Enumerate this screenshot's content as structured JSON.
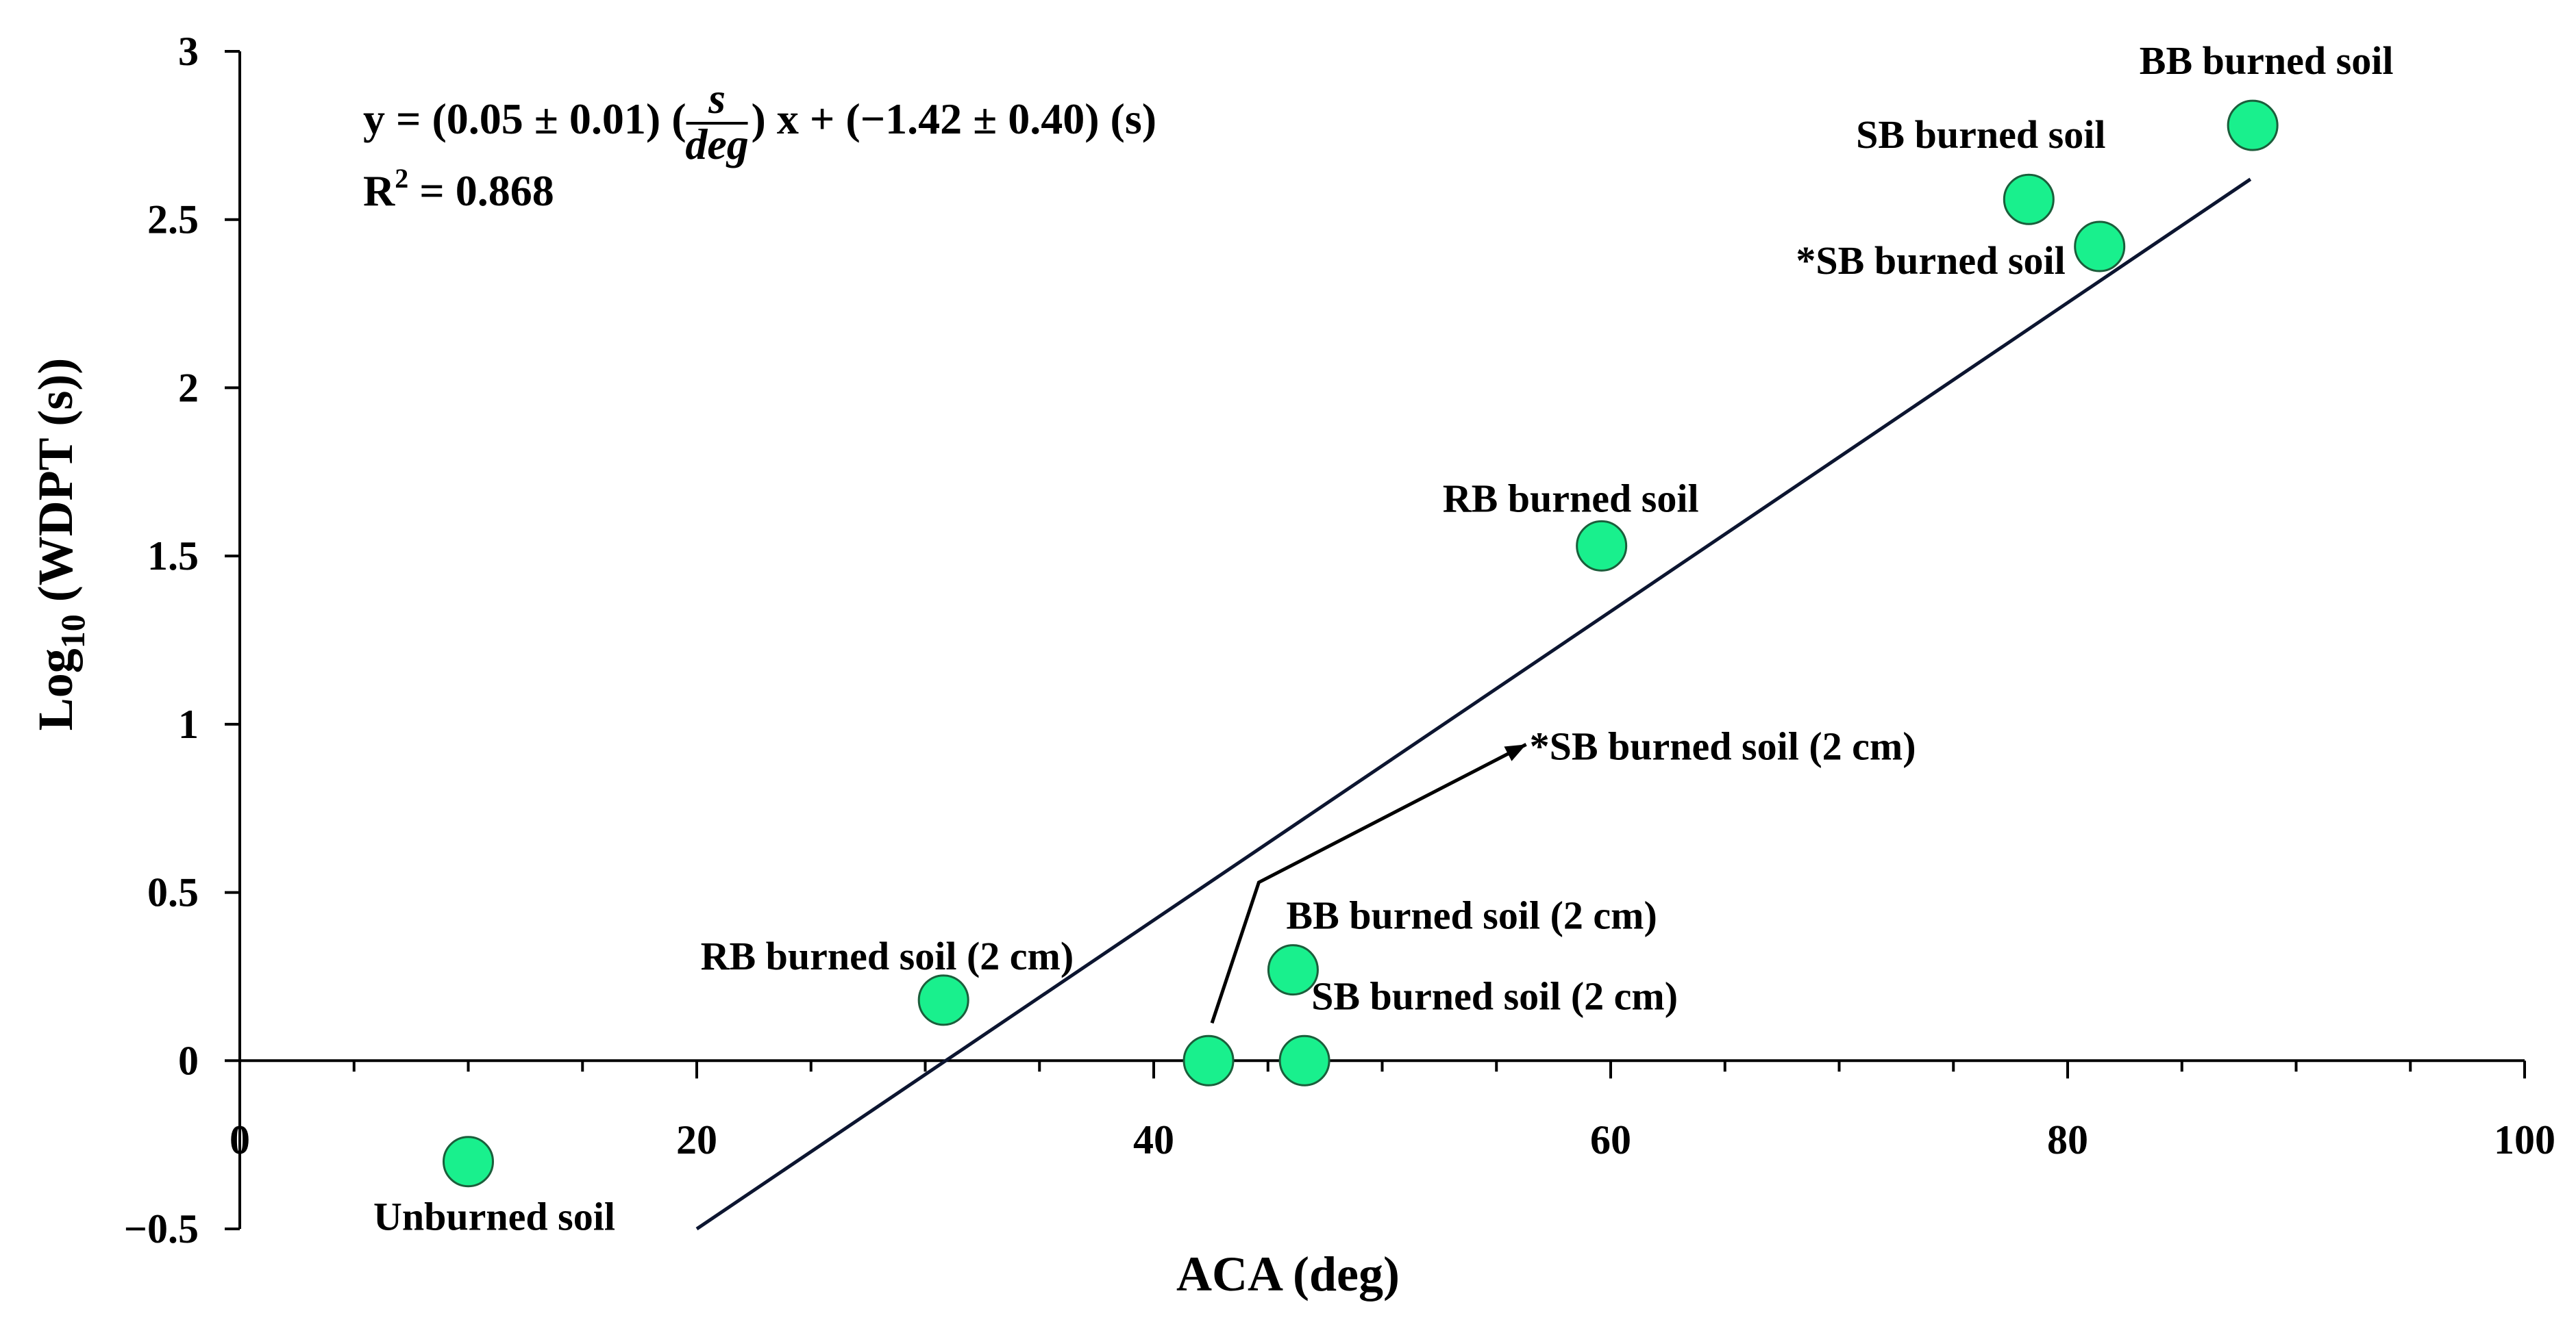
{
  "chart_data": {
    "type": "scatter",
    "xlabel": "ACA (deg)",
    "ylabel": "Log",
    "ylabel_sub": "10",
    "ylabel_suffix": " (WDPT (s))",
    "xlim": [
      0,
      100
    ],
    "ylim": [
      -0.5,
      3
    ],
    "x_ticks": [
      0,
      20,
      40,
      60,
      80,
      100
    ],
    "x_tick_labels": [
      "0",
      "20",
      "40",
      "60",
      "80",
      "100"
    ],
    "y_ticks": [
      -0.5,
      0,
      0.5,
      1,
      1.5,
      2,
      2.5,
      3
    ],
    "y_tick_labels": [
      "−0.5",
      "0",
      "0.5",
      "1",
      "1.5",
      "2",
      "2.5",
      "3"
    ],
    "grid": false,
    "marker_color": "#19f08d",
    "marker_edge": "#1b5e3b",
    "line_color": "#0c1530",
    "equation": {
      "prefix": "y = (0.05 ± 0.01) (",
      "frac_num": "s",
      "frac_den": "deg",
      "suffix": ") x + (−1.42 ± 0.40) (s)",
      "r2_label": "R",
      "r2_sup": "2",
      "r2_value": " = 0.868"
    },
    "fit_line": {
      "x": [
        20,
        88
      ],
      "y": [
        -0.5,
        2.62
      ]
    },
    "points": [
      {
        "x": 10,
        "y": -0.3,
        "label": "Unburned soil"
      },
      {
        "x": 30.8,
        "y": 0.18,
        "label": "RB burned soil (2 cm)"
      },
      {
        "x": 42.4,
        "y": 0.0,
        "label": "*SB burned soil (2 cm)"
      },
      {
        "x": 46.1,
        "y": 0.27,
        "label": "BB burned soil (2 cm)"
      },
      {
        "x": 46.6,
        "y": 0.0,
        "label": "SB burned soil (2 cm)"
      },
      {
        "x": 59.6,
        "y": 1.53,
        "label": "RB burned soil"
      },
      {
        "x": 78.3,
        "y": 2.56,
        "label": "SB burned soil"
      },
      {
        "x": 81.4,
        "y": 2.42,
        "label": "*SB burned soil"
      },
      {
        "x": 88.1,
        "y": 2.78,
        "label": "BB burned soil"
      }
    ]
  }
}
